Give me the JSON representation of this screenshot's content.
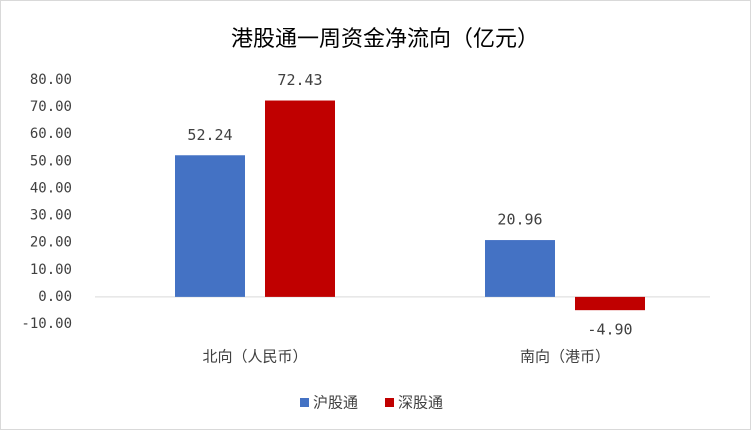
{
  "chart_data": {
    "type": "bar",
    "title": "港股通一周资金净流向（亿元）",
    "categories": [
      "北向（人民币）",
      "南向（港币）"
    ],
    "series": [
      {
        "name": "沪股通",
        "color": "#4472c4",
        "values": [
          52.24,
          20.96
        ],
        "value_labels": [
          "52.24",
          "20.96"
        ]
      },
      {
        "name": "深股通",
        "color": "#c00000",
        "values": [
          72.43,
          -4.9
        ],
        "value_labels": [
          "72.43",
          "-4.90"
        ]
      }
    ],
    "ylim": [
      -10,
      80
    ],
    "yticks": [
      {
        "value": -10,
        "label": "-10.00"
      },
      {
        "value": 0,
        "label": "0.00"
      },
      {
        "value": 10,
        "label": "10.00"
      },
      {
        "value": 20,
        "label": "20.00"
      },
      {
        "value": 30,
        "label": "30.00"
      },
      {
        "value": 40,
        "label": "40.00"
      },
      {
        "value": 50,
        "label": "50.00"
      },
      {
        "value": 60,
        "label": "60.00"
      },
      {
        "value": 70,
        "label": "70.00"
      },
      {
        "value": 80,
        "label": "80.00"
      }
    ],
    "grid": false,
    "legend": "bottom"
  }
}
